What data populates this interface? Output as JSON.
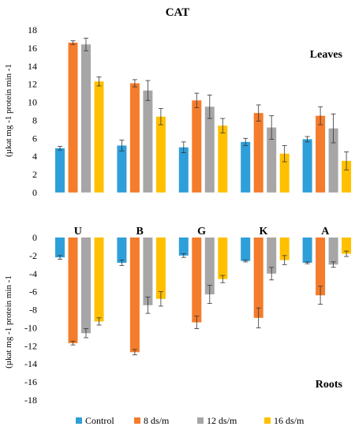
{
  "chart_data": {
    "type": "bar",
    "title": "CAT",
    "ylabel": "(µkat mg -1 protein min -1",
    "categories": [
      "U",
      "B",
      "G",
      "K",
      "A"
    ],
    "legend_position": "bottom",
    "grid": false,
    "series_colors": [
      "#2e9fd8",
      "#f47c2c",
      "#a6a6a6",
      "#ffc000"
    ],
    "series": [
      {
        "name": "Control"
      },
      {
        "name": "8 ds/m"
      },
      {
        "name": "12 ds/m"
      },
      {
        "name": "16 ds/m"
      }
    ],
    "panels": [
      {
        "label": "Leaves",
        "ylim": [
          0,
          18
        ],
        "yticks": [
          0,
          2,
          4,
          6,
          8,
          10,
          12,
          14,
          16,
          18
        ],
        "values": [
          [
            4.9,
            5.2,
            5.0,
            5.6,
            5.9
          ],
          [
            16.6,
            12.1,
            10.2,
            8.8,
            8.5
          ],
          [
            16.4,
            11.3,
            9.5,
            7.2,
            7.1
          ],
          [
            12.3,
            8.4,
            7.4,
            4.3,
            3.5
          ]
        ],
        "errors": [
          [
            0.2,
            0.6,
            0.6,
            0.4,
            0.3
          ],
          [
            0.2,
            0.4,
            0.8,
            0.9,
            1.0
          ],
          [
            0.7,
            1.1,
            1.3,
            1.3,
            1.6
          ],
          [
            0.5,
            0.9,
            0.8,
            0.9,
            1.0
          ]
        ]
      },
      {
        "label": "Roots",
        "ylim": [
          -18,
          0
        ],
        "yticks": [
          0,
          -2,
          -4,
          -6,
          -8,
          -10,
          -12,
          -14,
          -16,
          -18
        ],
        "values": [
          [
            -2.2,
            -2.8,
            -2.0,
            -2.6,
            -2.8
          ],
          [
            -11.7,
            -12.7,
            -9.4,
            -8.9,
            -6.4
          ],
          [
            -10.6,
            -7.5,
            -6.3,
            -4.0,
            -3.0
          ],
          [
            -9.3,
            -6.8,
            -4.6,
            -2.5,
            -1.8
          ]
        ],
        "errors": [
          [
            0.2,
            0.3,
            0.2,
            0.1,
            0.1
          ],
          [
            0.2,
            0.3,
            0.7,
            1.1,
            1.0
          ],
          [
            0.5,
            0.9,
            1.0,
            0.7,
            0.3
          ],
          [
            0.4,
            0.8,
            0.4,
            0.5,
            0.3
          ]
        ]
      }
    ]
  }
}
